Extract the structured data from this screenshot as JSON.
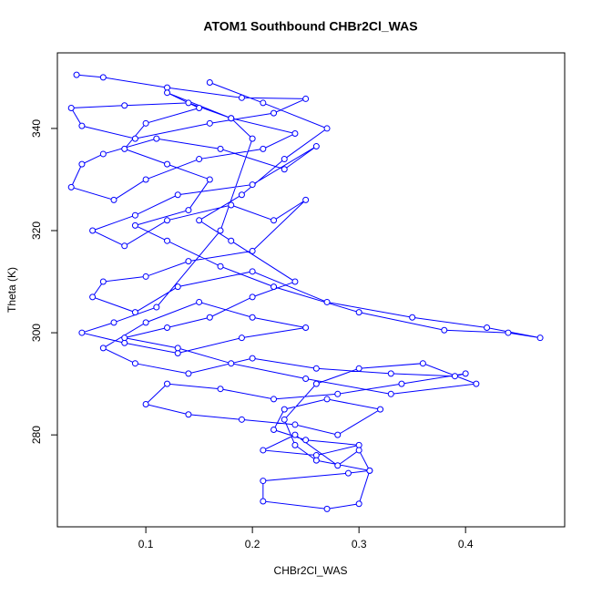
{
  "chart_data": {
    "type": "line",
    "title": "ATOM1 Southbound CHBr2Cl_WAS",
    "x_label": "CHBr2Cl_WAS",
    "y_label": "Theta (K)",
    "x": [
      0.035,
      0.06,
      0.12,
      0.19,
      0.25,
      0.22,
      0.16,
      0.09,
      0.04,
      0.03,
      0.08,
      0.14,
      0.18,
      0.24,
      0.21,
      0.15,
      0.1,
      0.07,
      0.03,
      0.04,
      0.06,
      0.11,
      0.17,
      0.23,
      0.26,
      0.2,
      0.13,
      0.09,
      0.05,
      0.08,
      0.12,
      0.18,
      0.22,
      0.25,
      0.2,
      0.14,
      0.1,
      0.06,
      0.05,
      0.09,
      0.13,
      0.2,
      0.27,
      0.35,
      0.42,
      0.47,
      0.44,
      0.38,
      0.3,
      0.22,
      0.17,
      0.12,
      0.09,
      0.14,
      0.16,
      0.12,
      0.08,
      0.1,
      0.15,
      0.12,
      0.18,
      0.2,
      0.17,
      0.11,
      0.07,
      0.04,
      0.08,
      0.13,
      0.19,
      0.25,
      0.2,
      0.15,
      0.1,
      0.06,
      0.09,
      0.14,
      0.2,
      0.26,
      0.33,
      0.39,
      0.4,
      0.34,
      0.28,
      0.22,
      0.17,
      0.12,
      0.1,
      0.14,
      0.19,
      0.24,
      0.28,
      0.32,
      0.27,
      0.23,
      0.22,
      0.25,
      0.3,
      0.26,
      0.21,
      0.24,
      0.28,
      0.3,
      0.31,
      0.29,
      0.21,
      0.21,
      0.27,
      0.3,
      0.31,
      0.26,
      0.24,
      0.23,
      0.26,
      0.3,
      0.36,
      0.41,
      0.33,
      0.25,
      0.18,
      0.13,
      0.08,
      0.12,
      0.16,
      0.2,
      0.24,
      0.18,
      0.15,
      0.19,
      0.23,
      0.27,
      0.21,
      0.16
    ],
    "series": [
      {
        "name": "CHBr2Cl_WAS",
        "color": "#0000ff",
        "values": [
          350.5,
          350,
          348,
          346,
          345.8,
          343,
          341,
          338,
          340.5,
          344,
          344.5,
          345,
          342,
          339,
          336,
          334,
          330,
          326,
          328.5,
          333,
          335,
          338,
          336,
          332,
          336.5,
          329,
          327,
          323,
          320,
          317,
          322,
          325,
          322,
          326,
          316,
          314,
          311,
          310,
          307,
          304,
          309,
          312,
          306,
          303,
          301,
          299,
          300,
          300.5,
          304,
          309,
          313,
          318,
          321,
          324,
          330,
          333,
          336,
          341,
          344,
          347,
          342,
          338,
          320,
          305,
          302,
          300,
          298,
          296,
          299,
          301,
          303,
          306,
          302,
          297,
          294,
          292,
          295,
          293,
          292,
          291.5,
          292,
          290,
          288,
          287,
          289,
          290,
          286,
          284,
          283,
          282,
          280,
          285,
          287,
          285,
          281,
          279,
          278,
          276,
          277,
          280,
          274,
          277,
          273,
          272.5,
          271,
          267,
          265.5,
          266.5,
          273,
          275,
          278,
          283,
          290,
          293,
          294,
          290,
          288,
          291,
          294,
          297,
          299,
          301,
          303,
          307,
          310,
          318,
          322,
          327,
          334,
          340,
          345,
          349
        ]
      }
    ],
    "xlim": [
      0.017,
      0.493
    ],
    "ylim": [
      262,
      354.8
    ],
    "xticks": [
      0.1,
      0.2,
      0.3,
      0.4
    ],
    "yticks": [
      280,
      300,
      320,
      340
    ]
  }
}
